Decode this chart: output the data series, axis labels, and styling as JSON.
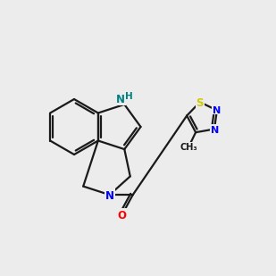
{
  "bg_color": "#ececec",
  "bond_color": "#1a1a1a",
  "N_color": "#0000ff",
  "NH_color": "#008080",
  "O_color": "#ff0000",
  "S_color": "#cccc00",
  "C_color": "#1a1a1a",
  "line_width": 1.6,
  "figsize": [
    3.0,
    3.0
  ],
  "dpi": 100
}
